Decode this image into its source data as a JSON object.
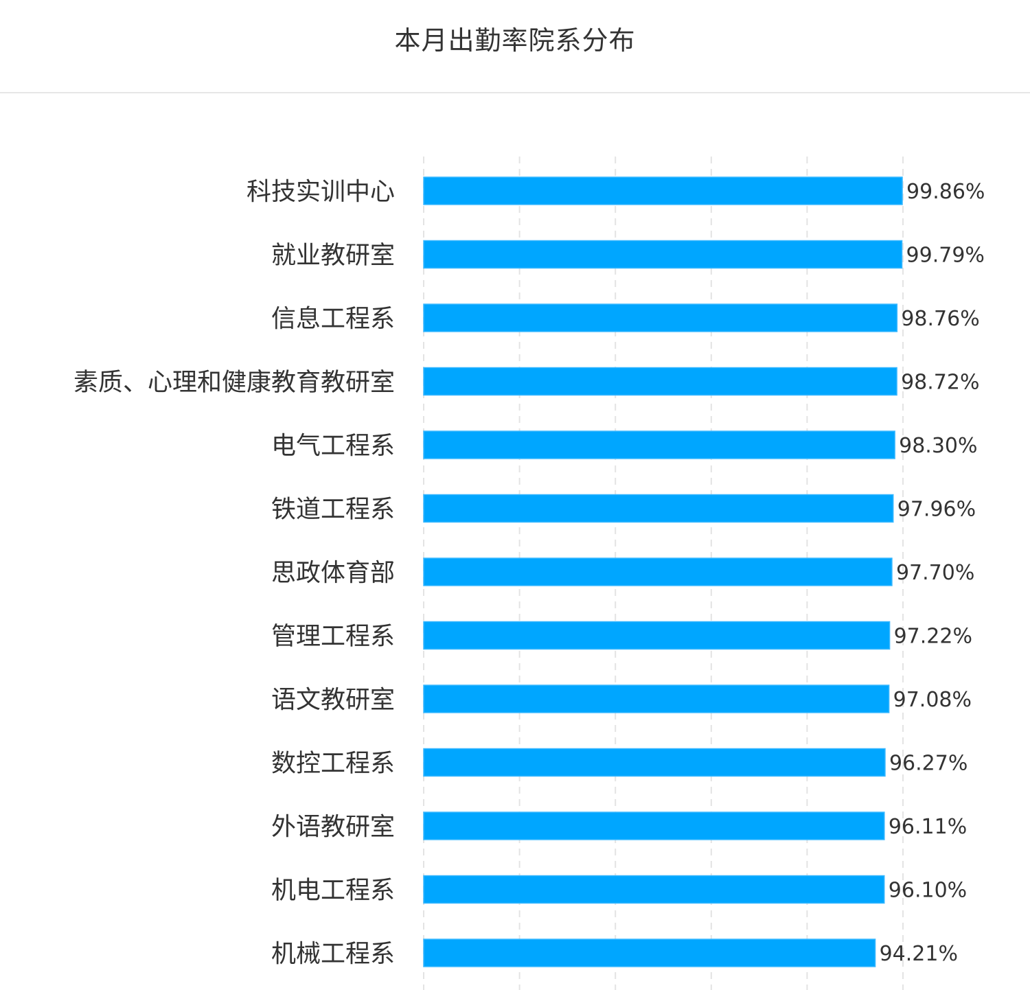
{
  "title": "本月出勤率院系分布",
  "colors": {
    "bar": "#00a6ff",
    "bar_edge": "#3ab8ff",
    "text": "#333333",
    "grid": "#e3e3e3"
  },
  "chart_data": {
    "type": "bar",
    "orientation": "horizontal",
    "title": "本月出勤率院系分布",
    "categories": [
      "科技实训中心",
      "就业教研室",
      "信息工程系",
      "素质、心理和健康教育教研室",
      "电气工程系",
      "铁道工程系",
      "思政体育部",
      "管理工程系",
      "语文教研室",
      "数控工程系",
      "外语教研室",
      "机电工程系",
      "机械工程系"
    ],
    "values": [
      99.86,
      99.79,
      98.76,
      98.72,
      98.3,
      97.96,
      97.7,
      97.22,
      97.08,
      96.27,
      96.11,
      96.1,
      94.21
    ],
    "value_labels": [
      "99.86%",
      "99.79%",
      "98.76%",
      "98.72%",
      "98.30%",
      "97.96%",
      "97.70%",
      "97.22%",
      "97.08%",
      "96.27%",
      "96.11%",
      "96.10%",
      "94.21%"
    ],
    "xlim": [
      0,
      100
    ],
    "grid": true,
    "xlabel": "",
    "ylabel": ""
  }
}
